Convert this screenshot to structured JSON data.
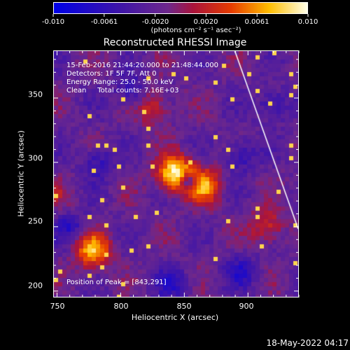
{
  "colorbar": {
    "ticks": [
      "-0.010",
      "-0.0061",
      "-0.0020",
      "0.0020",
      "0.0061",
      "0.010"
    ],
    "unit": "(photons cm⁻² s⁻¹ asec⁻²)"
  },
  "title": "Reconstructed RHESSI Image",
  "info": {
    "line1": "15-Feb-2016 21:44:20.000 to 21:48:44.000",
    "line2": "Detectors: 1F 5F 7F, Att 0",
    "line3": "Energy Range: 25.0 - 50.0 keV",
    "line4": "Clean     Total counts: 7.16E+03"
  },
  "peak": "Position of Peak = [843,291]",
  "footer_date": "18-May-2022 04:17",
  "chart_data": {
    "type": "heatmap",
    "title": "Reconstructed RHESSI Image",
    "xlabel": "Heliocentric X (arcsec)",
    "ylabel": "Heliocentric Y (arcsec)",
    "xlim": [
      747,
      940
    ],
    "ylim": [
      195,
      387
    ],
    "xticks": [
      "750",
      "800",
      "850",
      "900"
    ],
    "yticks": [
      "200",
      "250",
      "300",
      "350"
    ],
    "colorbar_range": [
      -0.01,
      0.01
    ],
    "colormap": "blue-purple-red-yellow-white",
    "peak_position": [
      843,
      291
    ],
    "bright_sources": [
      {
        "x": 843,
        "y": 291,
        "level": 0.95
      },
      {
        "x": 866,
        "y": 282,
        "level": 0.75
      },
      {
        "x": 825,
        "y": 343,
        "level": 0.6
      },
      {
        "x": 778,
        "y": 231,
        "level": 0.8
      },
      {
        "x": 915,
        "y": 250,
        "level": 0.6
      },
      {
        "x": 752,
        "y": 272,
        "level": 0.45
      }
    ],
    "limb_line": {
      "x": [
        890,
        940
      ],
      "y": [
        387,
        248
      ]
    },
    "colors": {
      "background": "#000000",
      "text": "#ffffff",
      "limb": "#ffffff"
    }
  }
}
